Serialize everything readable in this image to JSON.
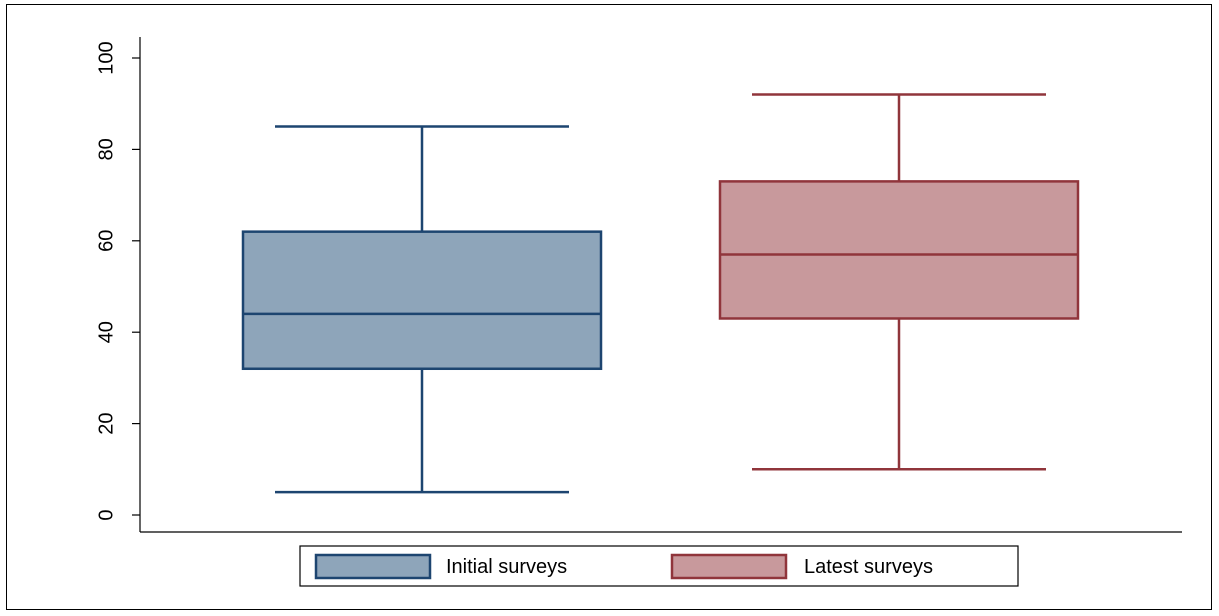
{
  "chart_data": {
    "type": "box",
    "title": "",
    "xlabel": "",
    "ylabel": "",
    "ylim": [
      0,
      105
    ],
    "yticks": [
      0,
      20,
      40,
      60,
      80,
      100
    ],
    "grid": false,
    "legend_position": "bottom",
    "series": [
      {
        "name": "Initial surveys",
        "color": "#8ea5ba",
        "edge_color": "#1d4570",
        "whisker_low": 5,
        "q1": 32,
        "median": 44,
        "q3": 62,
        "whisker_high": 85
      },
      {
        "name": "Latest surveys",
        "color": "#c8999c",
        "edge_color": "#90353b",
        "whisker_low": 10,
        "q1": 43,
        "median": 57,
        "q3": 73,
        "whisker_high": 92
      }
    ]
  }
}
